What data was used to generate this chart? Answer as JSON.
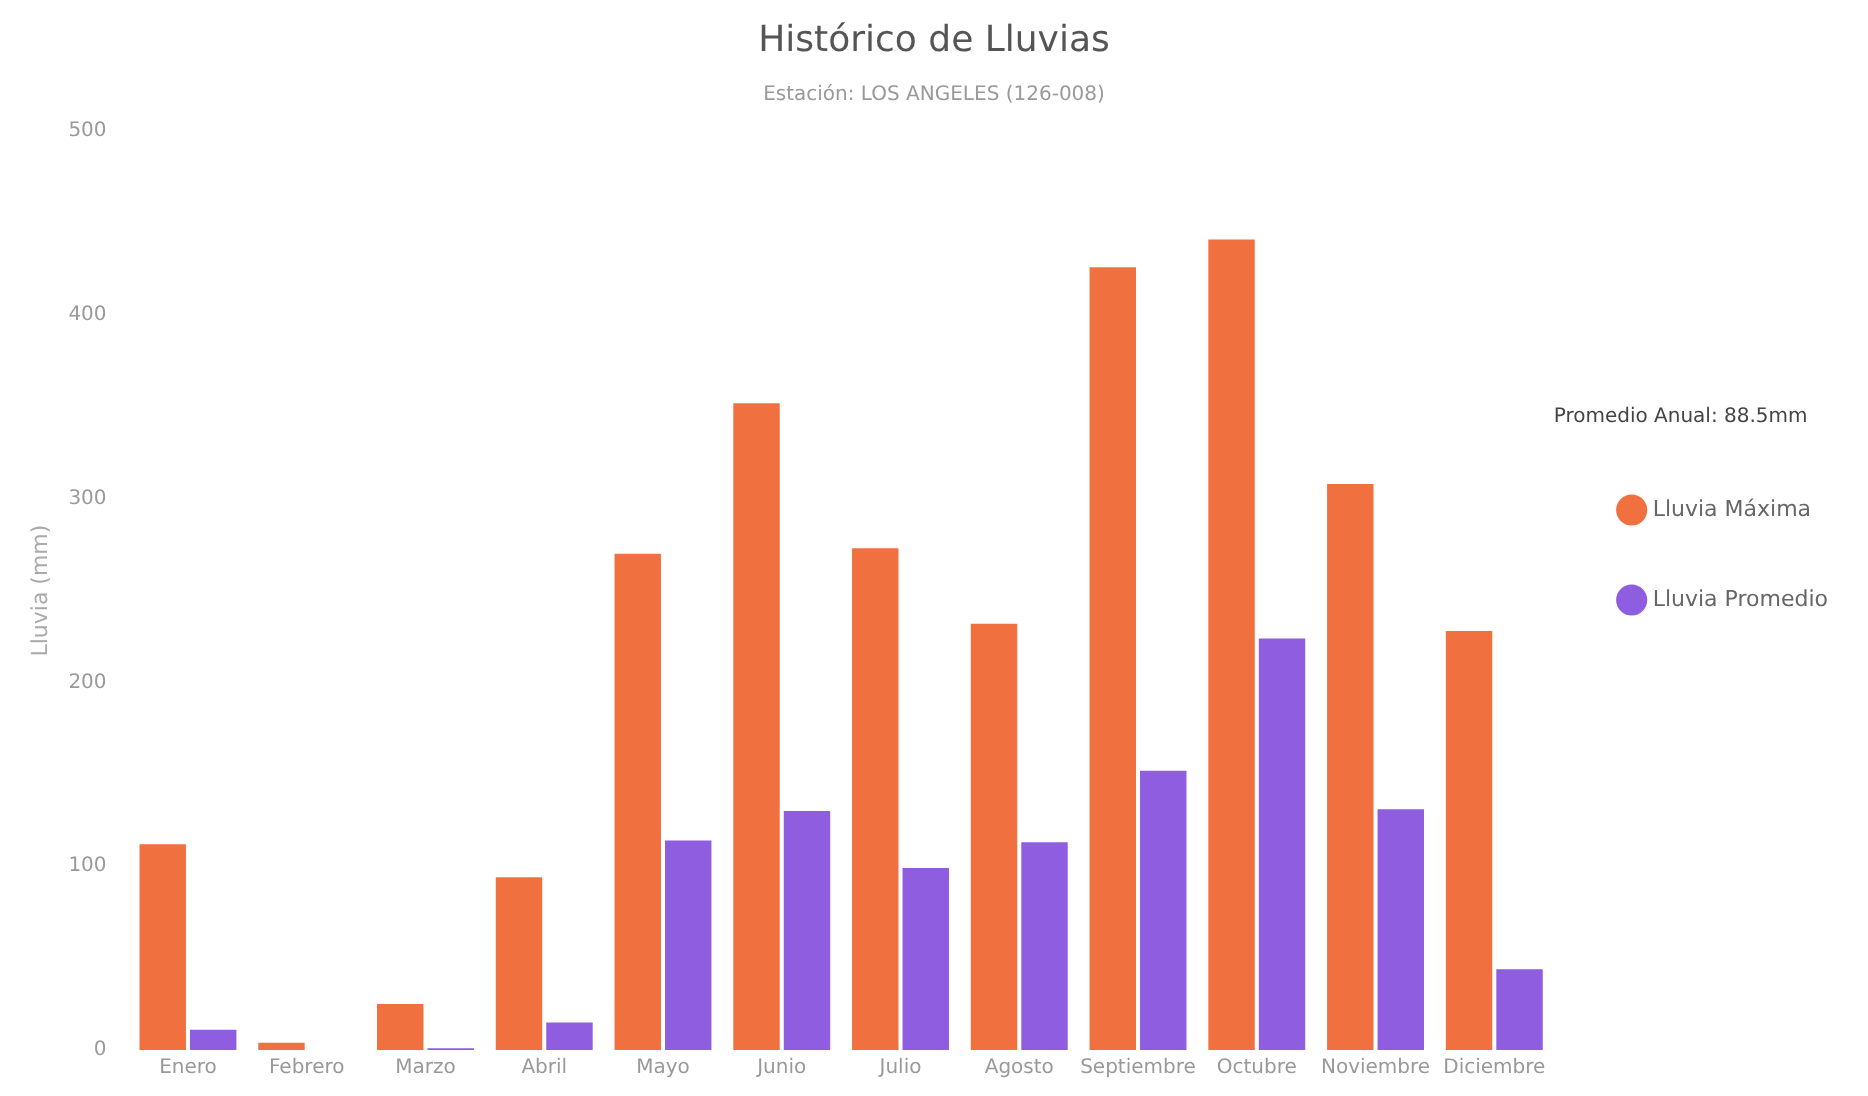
{
  "chart_data": {
    "type": "bar",
    "title": "Histórico de Lluvias",
    "subtitle": "Estación: LOS ANGELES (126-008)",
    "ylabel": "Lluvia (mm)",
    "legend_title": "Promedio Anual: 88.5mm",
    "categories": [
      "Enero",
      "Febrero",
      "Marzo",
      "Abril",
      "Mayo",
      "Junio",
      "Julio",
      "Agosto",
      "Septiembre",
      "Octubre",
      "Noviembre",
      "Diciembre"
    ],
    "series": [
      {
        "name": "Lluvia Máxima",
        "color": "#f07040",
        "values": [
          112,
          4,
          25,
          94,
          270,
          352,
          273,
          232,
          426,
          441,
          308,
          228
        ]
      },
      {
        "name": "Lluvia Promedio",
        "color": "#8e5de0",
        "values": [
          11,
          0,
          1,
          15,
          114,
          130,
          99,
          113,
          152,
          224,
          131,
          44
        ]
      }
    ],
    "ylim": [
      0,
      500
    ],
    "yticks": [
      0,
      100,
      200,
      300,
      400,
      500
    ],
    "grid": false,
    "legend": "right"
  }
}
